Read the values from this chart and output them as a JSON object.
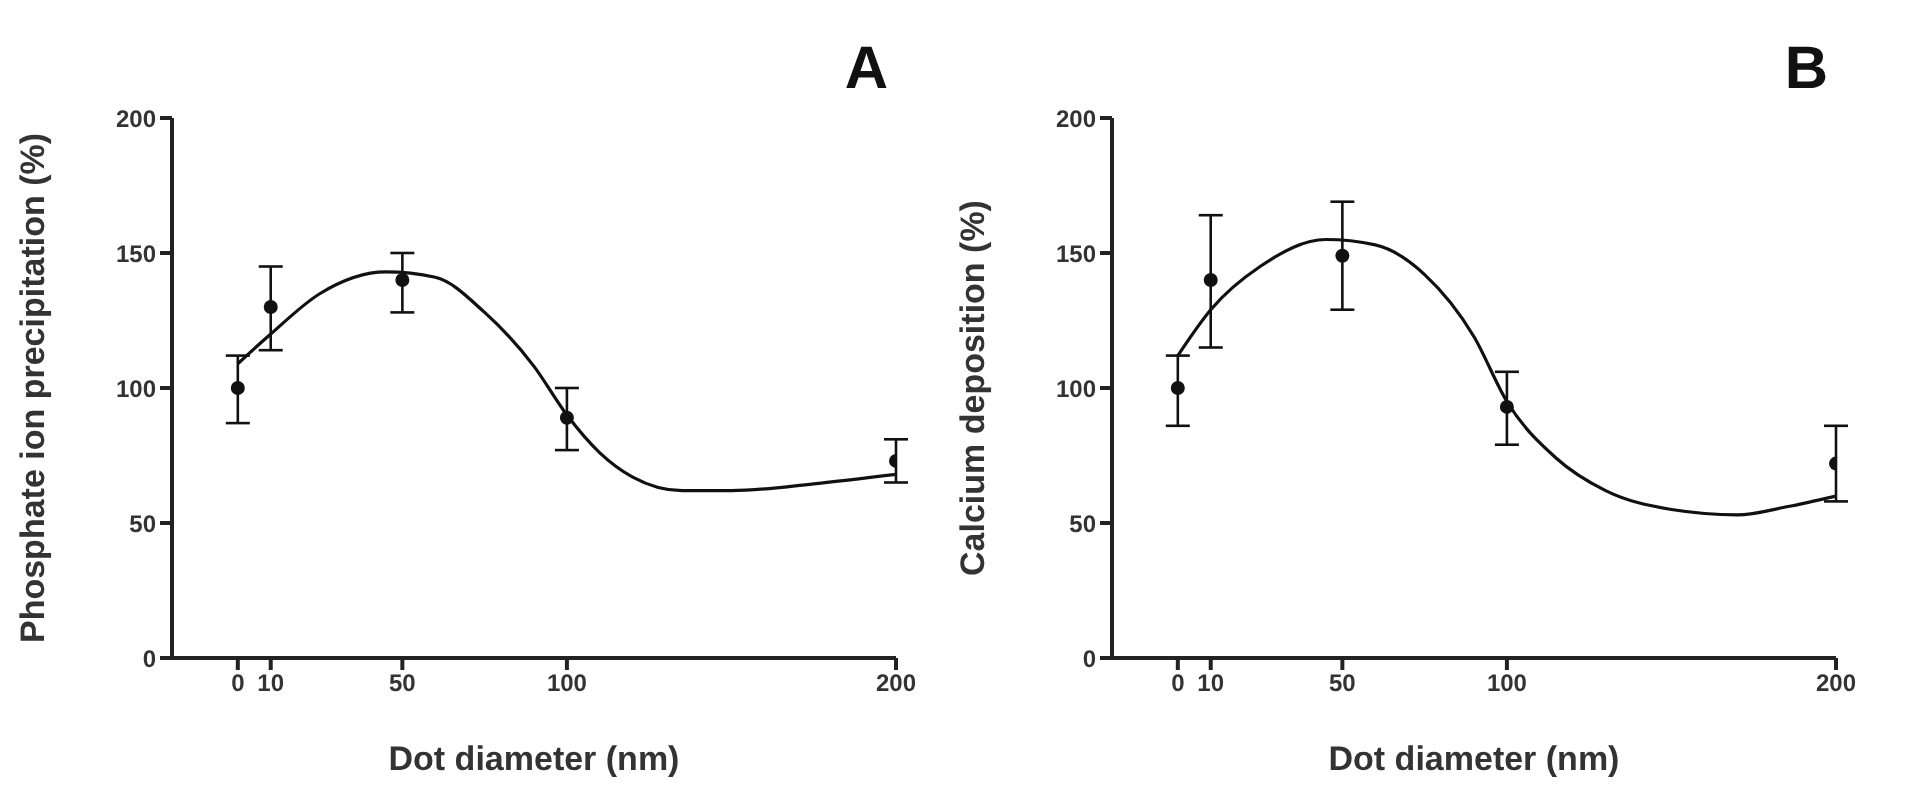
{
  "chart_data": [
    {
      "type": "scatter",
      "title": "A",
      "xlabel": "Dot diameter (nm)",
      "ylabel": "Phosphate ion precipitation (%)",
      "xlim": [
        -20,
        200
      ],
      "xticks": [
        0,
        10,
        50,
        100,
        200
      ],
      "ylim": [
        0,
        200
      ],
      "yticks": [
        0,
        50,
        100,
        150,
        200
      ],
      "grid": false,
      "series": [
        {
          "marker": "circle",
          "color": "#111111",
          "x": [
            0,
            10,
            50,
            100,
            200
          ],
          "values": [
            100,
            130,
            140,
            89,
            73
          ],
          "errors": [
            [
              87,
              112
            ],
            [
              114,
              145
            ],
            [
              128,
              150
            ],
            [
              77,
              100
            ],
            [
              65,
              81
            ]
          ]
        },
        {
          "type": "line",
          "marker": "none",
          "color": "#111111",
          "line_style": "solid",
          "x": [
            0,
            10,
            25,
            45,
            60,
            75,
            90,
            100,
            110,
            120,
            135,
            150,
            175,
            200
          ],
          "values": [
            109,
            120,
            135,
            143,
            141,
            128,
            108,
            90,
            76,
            67,
            62,
            62,
            64.5,
            68
          ]
        }
      ]
    },
    {
      "type": "scatter",
      "title": "B",
      "xlabel": "Dot diameter (nm)",
      "ylabel": "Calcium deposition (%)",
      "xlim": [
        -20,
        200
      ],
      "xticks": [
        0,
        10,
        50,
        100,
        200
      ],
      "ylim": [
        0,
        200
      ],
      "yticks": [
        0,
        50,
        100,
        150,
        200
      ],
      "grid": false,
      "series": [
        {
          "marker": "circle",
          "color": "#111111",
          "x": [
            0,
            10,
            50,
            100,
            200
          ],
          "values": [
            100,
            140,
            149,
            93,
            72
          ],
          "errors": [
            [
              86,
              112
            ],
            [
              115,
              164
            ],
            [
              129,
              169
            ],
            [
              79,
              106
            ],
            [
              58,
              86
            ]
          ]
        },
        {
          "type": "line",
          "marker": "none",
          "color": "#111111",
          "line_style": "solid",
          "x": [
            0,
            10,
            25,
            45,
            60,
            75,
            90,
            100,
            115,
            130,
            150,
            170,
            185,
            200
          ],
          "values": [
            112,
            129,
            145,
            155,
            153,
            142,
            119,
            95,
            74,
            62,
            55,
            53,
            56,
            60
          ]
        }
      ]
    }
  ]
}
